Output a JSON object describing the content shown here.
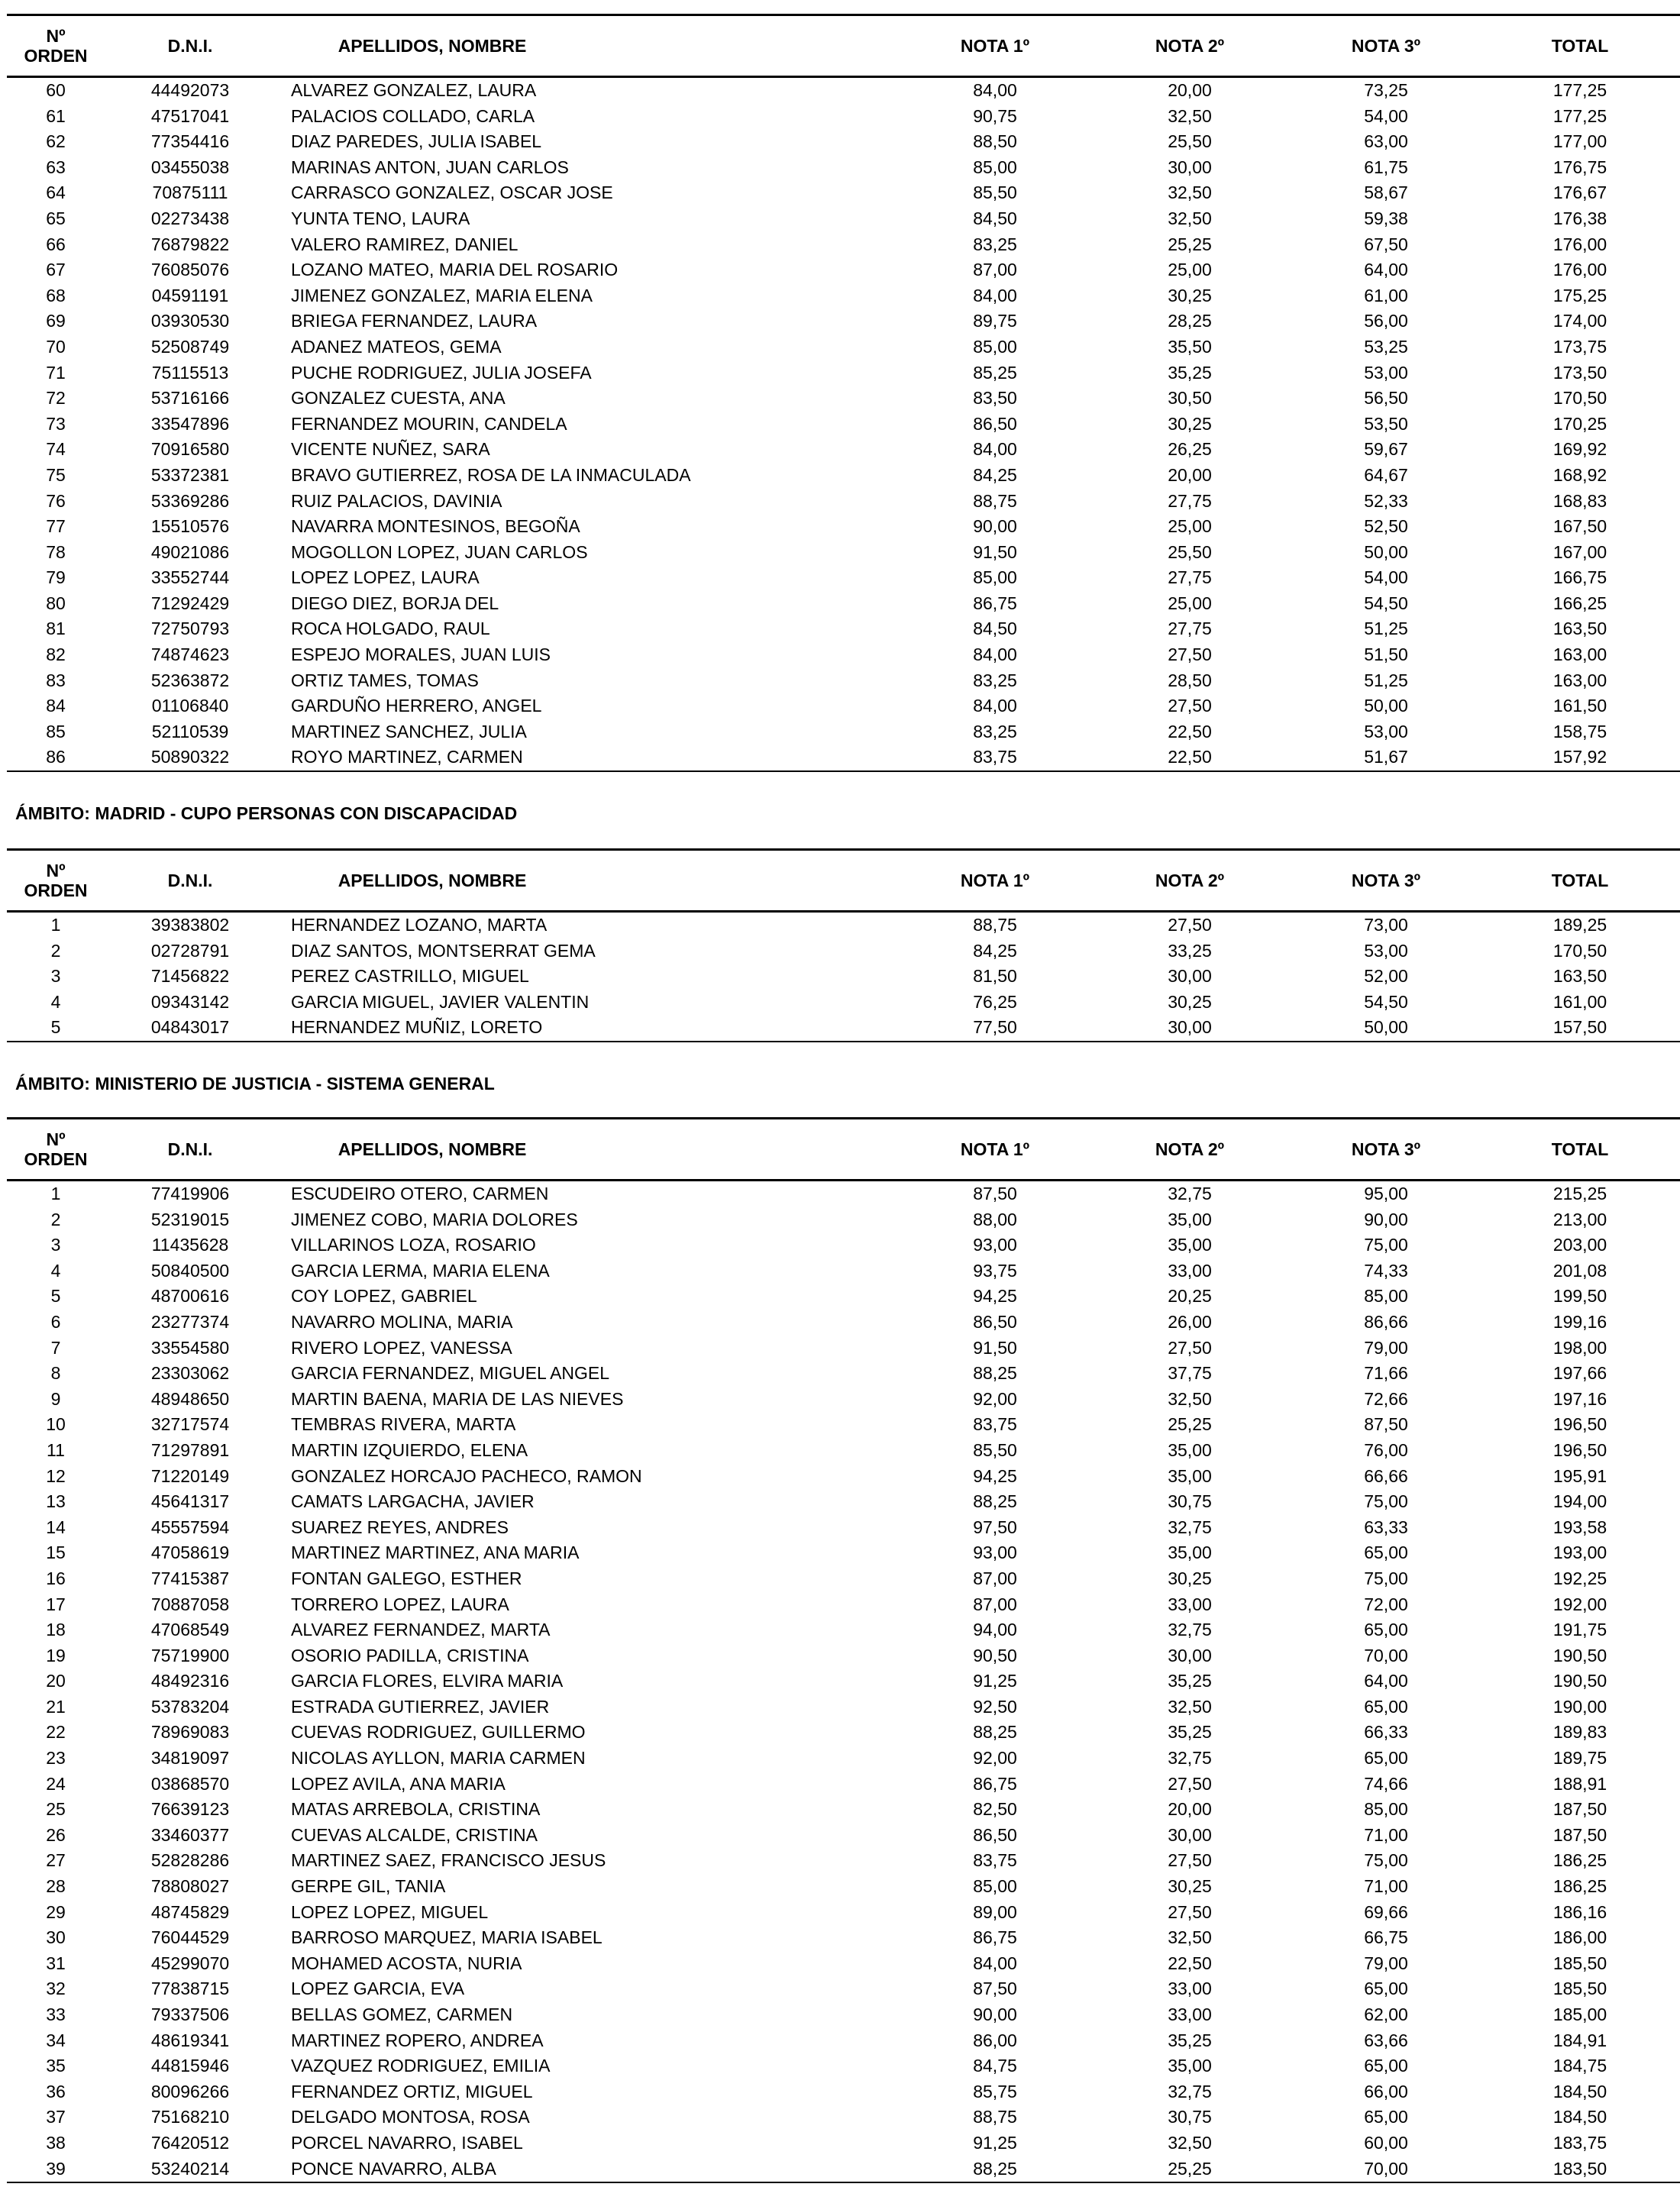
{
  "headers": {
    "orden": "Nº\nORDEN",
    "dni": "D.N.I.",
    "nombre": "APELLIDOS, NOMBRE",
    "nota1": "NOTA 1º",
    "nota2": "NOTA 2º",
    "nota3": "NOTA 3º",
    "total": "TOTAL"
  },
  "sections": [
    {
      "title": "",
      "rows": [
        [
          "60",
          "44492073",
          "ALVAREZ GONZALEZ, LAURA",
          "84,00",
          "20,00",
          "73,25",
          "177,25"
        ],
        [
          "61",
          "47517041",
          "PALACIOS COLLADO, CARLA",
          "90,75",
          "32,50",
          "54,00",
          "177,25"
        ],
        [
          "62",
          "77354416",
          "DIAZ PAREDES, JULIA ISABEL",
          "88,50",
          "25,50",
          "63,00",
          "177,00"
        ],
        [
          "63",
          "03455038",
          "MARINAS ANTON, JUAN CARLOS",
          "85,00",
          "30,00",
          "61,75",
          "176,75"
        ],
        [
          "64",
          "70875111",
          "CARRASCO GONZALEZ, OSCAR JOSE",
          "85,50",
          "32,50",
          "58,67",
          "176,67"
        ],
        [
          "65",
          "02273438",
          "YUNTA TENO, LAURA",
          "84,50",
          "32,50",
          "59,38",
          "176,38"
        ],
        [
          "66",
          "76879822",
          "VALERO RAMIREZ, DANIEL",
          "83,25",
          "25,25",
          "67,50",
          "176,00"
        ],
        [
          "67",
          "76085076",
          "LOZANO MATEO, MARIA DEL ROSARIO",
          "87,00",
          "25,00",
          "64,00",
          "176,00"
        ],
        [
          "68",
          "04591191",
          "JIMENEZ GONZALEZ, MARIA ELENA",
          "84,00",
          "30,25",
          "61,00",
          "175,25"
        ],
        [
          "69",
          "03930530",
          "BRIEGA FERNANDEZ, LAURA",
          "89,75",
          "28,25",
          "56,00",
          "174,00"
        ],
        [
          "70",
          "52508749",
          "ADANEZ MATEOS, GEMA",
          "85,00",
          "35,50",
          "53,25",
          "173,75"
        ],
        [
          "71",
          "75115513",
          "PUCHE RODRIGUEZ, JULIA JOSEFA",
          "85,25",
          "35,25",
          "53,00",
          "173,50"
        ],
        [
          "72",
          "53716166",
          "GONZALEZ CUESTA, ANA",
          "83,50",
          "30,50",
          "56,50",
          "170,50"
        ],
        [
          "73",
          "33547896",
          "FERNANDEZ MOURIN, CANDELA",
          "86,50",
          "30,25",
          "53,50",
          "170,25"
        ],
        [
          "74",
          "70916580",
          "VICENTE NUÑEZ, SARA",
          "84,00",
          "26,25",
          "59,67",
          "169,92"
        ],
        [
          "75",
          "53372381",
          "BRAVO GUTIERREZ, ROSA DE LA INMACULADA",
          "84,25",
          "20,00",
          "64,67",
          "168,92"
        ],
        [
          "76",
          "53369286",
          "RUIZ PALACIOS, DAVINIA",
          "88,75",
          "27,75",
          "52,33",
          "168,83"
        ],
        [
          "77",
          "15510576",
          "NAVARRA MONTESINOS, BEGOÑA",
          "90,00",
          "25,00",
          "52,50",
          "167,50"
        ],
        [
          "78",
          "49021086",
          "MOGOLLON LOPEZ, JUAN CARLOS",
          "91,50",
          "25,50",
          "50,00",
          "167,00"
        ],
        [
          "79",
          "33552744",
          "LOPEZ LOPEZ, LAURA",
          "85,00",
          "27,75",
          "54,00",
          "166,75"
        ],
        [
          "80",
          "71292429",
          "DIEGO DIEZ, BORJA DEL",
          "86,75",
          "25,00",
          "54,50",
          "166,25"
        ],
        [
          "81",
          "72750793",
          "ROCA HOLGADO, RAUL",
          "84,50",
          "27,75",
          "51,25",
          "163,50"
        ],
        [
          "82",
          "74874623",
          "ESPEJO MORALES, JUAN LUIS",
          "84,00",
          "27,50",
          "51,50",
          "163,00"
        ],
        [
          "83",
          "52363872",
          "ORTIZ TAMES, TOMAS",
          "83,25",
          "28,50",
          "51,25",
          "163,00"
        ],
        [
          "84",
          "01106840",
          "GARDUÑO HERRERO, ANGEL",
          "84,00",
          "27,50",
          "50,00",
          "161,50"
        ],
        [
          "85",
          "52110539",
          "MARTINEZ SANCHEZ, JULIA",
          "83,25",
          "22,50",
          "53,00",
          "158,75"
        ],
        [
          "86",
          "50890322",
          "ROYO MARTINEZ, CARMEN",
          "83,75",
          "22,50",
          "51,67",
          "157,92"
        ]
      ]
    },
    {
      "title": "ÁMBITO: MADRID - CUPO PERSONAS CON DISCAPACIDAD",
      "rows": [
        [
          "1",
          "39383802",
          "HERNANDEZ LOZANO, MARTA",
          "88,75",
          "27,50",
          "73,00",
          "189,25"
        ],
        [
          "2",
          "02728791",
          "DIAZ SANTOS, MONTSERRAT GEMA",
          "84,25",
          "33,25",
          "53,00",
          "170,50"
        ],
        [
          "3",
          "71456822",
          "PEREZ CASTRILLO, MIGUEL",
          "81,50",
          "30,00",
          "52,00",
          "163,50"
        ],
        [
          "4",
          "09343142",
          "GARCIA MIGUEL, JAVIER VALENTIN",
          "76,25",
          "30,25",
          "54,50",
          "161,00"
        ],
        [
          "5",
          "04843017",
          "HERNANDEZ MUÑIZ, LORETO",
          "77,50",
          "30,00",
          "50,00",
          "157,50"
        ]
      ]
    },
    {
      "title": "ÁMBITO: MINISTERIO DE JUSTICIA - SISTEMA GENERAL",
      "rows": [
        [
          "1",
          "77419906",
          "ESCUDEIRO OTERO, CARMEN",
          "87,50",
          "32,75",
          "95,00",
          "215,25"
        ],
        [
          "2",
          "52319015",
          "JIMENEZ COBO, MARIA DOLORES",
          "88,00",
          "35,00",
          "90,00",
          "213,00"
        ],
        [
          "3",
          "11435628",
          "VILLARINOS LOZA, ROSARIO",
          "93,00",
          "35,00",
          "75,00",
          "203,00"
        ],
        [
          "4",
          "50840500",
          "GARCIA LERMA, MARIA ELENA",
          "93,75",
          "33,00",
          "74,33",
          "201,08"
        ],
        [
          "5",
          "48700616",
          "COY LOPEZ, GABRIEL",
          "94,25",
          "20,25",
          "85,00",
          "199,50"
        ],
        [
          "6",
          "23277374",
          "NAVARRO MOLINA, MARIA",
          "86,50",
          "26,00",
          "86,66",
          "199,16"
        ],
        [
          "7",
          "33554580",
          "RIVERO LOPEZ, VANESSA",
          "91,50",
          "27,50",
          "79,00",
          "198,00"
        ],
        [
          "8",
          "23303062",
          "GARCIA FERNANDEZ, MIGUEL ANGEL",
          "88,25",
          "37,75",
          "71,66",
          "197,66"
        ],
        [
          "9",
          "48948650",
          "MARTIN BAENA, MARIA DE LAS NIEVES",
          "92,00",
          "32,50",
          "72,66",
          "197,16"
        ],
        [
          "10",
          "32717574",
          "TEMBRAS RIVERA, MARTA",
          "83,75",
          "25,25",
          "87,50",
          "196,50"
        ],
        [
          "11",
          "71297891",
          "MARTIN IZQUIERDO, ELENA",
          "85,50",
          "35,00",
          "76,00",
          "196,50"
        ],
        [
          "12",
          "71220149",
          "GONZALEZ HORCAJO PACHECO, RAMON",
          "94,25",
          "35,00",
          "66,66",
          "195,91"
        ],
        [
          "13",
          "45641317",
          "CAMATS LARGACHA, JAVIER",
          "88,25",
          "30,75",
          "75,00",
          "194,00"
        ],
        [
          "14",
          "45557594",
          "SUAREZ REYES, ANDRES",
          "97,50",
          "32,75",
          "63,33",
          "193,58"
        ],
        [
          "15",
          "47058619",
          "MARTINEZ MARTINEZ, ANA MARIA",
          "93,00",
          "35,00",
          "65,00",
          "193,00"
        ],
        [
          "16",
          "77415387",
          "FONTAN GALEGO, ESTHER",
          "87,00",
          "30,25",
          "75,00",
          "192,25"
        ],
        [
          "17",
          "70887058",
          "TORRERO LOPEZ, LAURA",
          "87,00",
          "33,00",
          "72,00",
          "192,00"
        ],
        [
          "18",
          "47068549",
          "ALVAREZ FERNANDEZ, MARTA",
          "94,00",
          "32,75",
          "65,00",
          "191,75"
        ],
        [
          "19",
          "75719900",
          "OSORIO PADILLA, CRISTINA",
          "90,50",
          "30,00",
          "70,00",
          "190,50"
        ],
        [
          "20",
          "48492316",
          "GARCIA FLORES, ELVIRA MARIA",
          "91,25",
          "35,25",
          "64,00",
          "190,50"
        ],
        [
          "21",
          "53783204",
          "ESTRADA GUTIERREZ, JAVIER",
          "92,50",
          "32,50",
          "65,00",
          "190,00"
        ],
        [
          "22",
          "78969083",
          "CUEVAS RODRIGUEZ, GUILLERMO",
          "88,25",
          "35,25",
          "66,33",
          "189,83"
        ],
        [
          "23",
          "34819097",
          "NICOLAS AYLLON, MARIA CARMEN",
          "92,00",
          "32,75",
          "65,00",
          "189,75"
        ],
        [
          "24",
          "03868570",
          "LOPEZ AVILA, ANA MARIA",
          "86,75",
          "27,50",
          "74,66",
          "188,91"
        ],
        [
          "25",
          "76639123",
          "MATAS ARREBOLA, CRISTINA",
          "82,50",
          "20,00",
          "85,00",
          "187,50"
        ],
        [
          "26",
          "33460377",
          "CUEVAS ALCALDE, CRISTINA",
          "86,50",
          "30,00",
          "71,00",
          "187,50"
        ],
        [
          "27",
          "52828286",
          "MARTINEZ SAEZ, FRANCISCO JESUS",
          "83,75",
          "27,50",
          "75,00",
          "186,25"
        ],
        [
          "28",
          "78808027",
          "GERPE GIL, TANIA",
          "85,00",
          "30,25",
          "71,00",
          "186,25"
        ],
        [
          "29",
          "48745829",
          "LOPEZ LOPEZ, MIGUEL",
          "89,00",
          "27,50",
          "69,66",
          "186,16"
        ],
        [
          "30",
          "76044529",
          "BARROSO MARQUEZ, MARIA ISABEL",
          "86,75",
          "32,50",
          "66,75",
          "186,00"
        ],
        [
          "31",
          "45299070",
          "MOHAMED ACOSTA, NURIA",
          "84,00",
          "22,50",
          "79,00",
          "185,50"
        ],
        [
          "32",
          "77838715",
          "LOPEZ GARCIA, EVA",
          "87,50",
          "33,00",
          "65,00",
          "185,50"
        ],
        [
          "33",
          "79337506",
          "BELLAS GOMEZ, CARMEN",
          "90,00",
          "33,00",
          "62,00",
          "185,00"
        ],
        [
          "34",
          "48619341",
          "MARTINEZ  ROPERO, ANDREA",
          "86,00",
          "35,25",
          "63,66",
          "184,91"
        ],
        [
          "35",
          "44815946",
          "VAZQUEZ RODRIGUEZ, EMILIA",
          "84,75",
          "35,00",
          "65,00",
          "184,75"
        ],
        [
          "36",
          "80096266",
          "FERNANDEZ ORTIZ, MIGUEL",
          "85,75",
          "32,75",
          "66,00",
          "184,50"
        ],
        [
          "37",
          "75168210",
          "DELGADO MONTOSA, ROSA",
          "88,75",
          "30,75",
          "65,00",
          "184,50"
        ],
        [
          "38",
          "76420512",
          "PORCEL NAVARRO, ISABEL",
          "91,25",
          "32,50",
          "60,00",
          "183,75"
        ],
        [
          "39",
          "53240214",
          "PONCE NAVARRO, ALBA",
          "88,25",
          "25,25",
          "70,00",
          "183,50"
        ]
      ]
    }
  ]
}
